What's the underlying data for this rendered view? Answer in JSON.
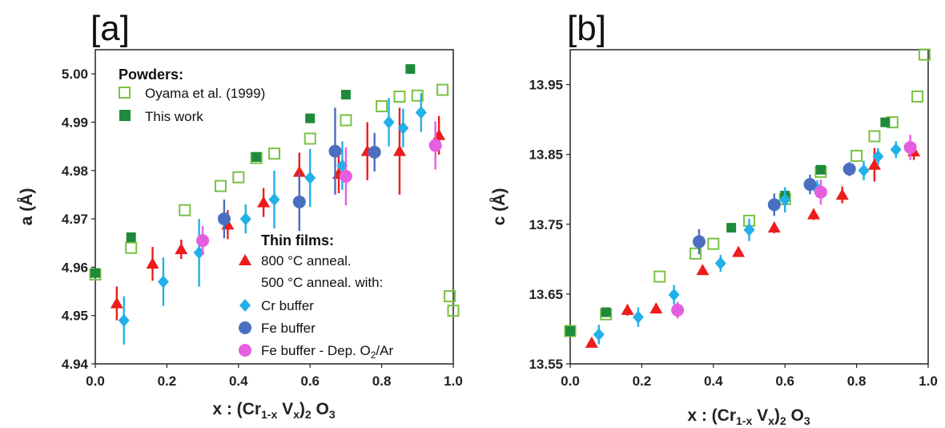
{
  "colors": {
    "oyama": "#7ac143",
    "this_work": "#1e8a3c",
    "anneal800": "#ee1c1c",
    "cr_buffer": "#22b0e8",
    "fe_buffer": "#4a6fc0",
    "fe_dep": "#e65ee0"
  },
  "legend": {
    "powders_heading": "Powders:",
    "oyama": "Oyama et al. (1999)",
    "this_work": "This work",
    "films_heading": "Thin films:",
    "anneal800": "800 °C anneal.",
    "anneal500": "500 °C anneal. with:",
    "cr_buffer": "Cr buffer",
    "fe_buffer": "Fe buffer",
    "fe_dep_main": "Fe buffer - Dep. O",
    "fe_dep_sub": "2",
    "fe_dep_tail": "/Ar"
  },
  "chart_data": [
    {
      "type": "scatter",
      "panel_label": "[a]",
      "ylabel": "a (Å)",
      "xlabel": {
        "main": "x : (Cr",
        "sub1": "1-x",
        "mid": " V",
        "sub2": "x",
        "close": ")",
        "sub3": "2",
        "tail": " O",
        "sub4": "3"
      },
      "xlim": [
        0,
        1.0
      ],
      "ylim": [
        4.94,
        5.005
      ],
      "xticks": [
        "0.0",
        "0.2",
        "0.4",
        "0.6",
        "0.8",
        "1.0"
      ],
      "xtick_values": [
        0,
        0.2,
        0.4,
        0.6,
        0.8,
        1.0
      ],
      "yticks": [
        "4.94",
        "4.95",
        "4.96",
        "4.97",
        "4.98",
        "4.99",
        "5.00"
      ],
      "ytick_values": [
        4.94,
        4.95,
        4.96,
        4.97,
        4.98,
        4.99,
        5.0
      ],
      "series": [
        {
          "name": "Oyama et al. (1999)",
          "marker": "open-square",
          "color_key": "oyama",
          "points": [
            [
              0.0,
              4.9585
            ],
            [
              0.1,
              4.964
            ],
            [
              0.25,
              4.9718
            ],
            [
              0.35,
              4.9768
            ],
            [
              0.4,
              4.9786
            ],
            [
              0.45,
              4.9826
            ],
            [
              0.5,
              4.9835
            ],
            [
              0.6,
              4.9866
            ],
            [
              0.7,
              4.9904
            ],
            [
              0.8,
              4.9933
            ],
            [
              0.85,
              4.9953
            ],
            [
              0.9,
              4.9955
            ],
            [
              0.97,
              4.9967
            ],
            [
              0.99,
              4.954
            ],
            [
              1.0,
              4.951
            ]
          ]
        },
        {
          "name": "This work",
          "marker": "filled-square",
          "color_key": "this_work",
          "points": [
            [
              0.0,
              4.9588
            ],
            [
              0.1,
              4.9662
            ],
            [
              0.45,
              4.9828
            ],
            [
              0.6,
              4.9908
            ],
            [
              0.7,
              4.9957
            ],
            [
              0.88,
              5.001
            ]
          ]
        },
        {
          "name": "800 °C anneal.",
          "marker": "triangle",
          "color_key": "anneal800",
          "points": [
            [
              0.06,
              4.9525,
              0.0035
            ],
            [
              0.16,
              4.9607,
              0.0035
            ],
            [
              0.24,
              4.9637,
              0.002
            ],
            [
              0.37,
              4.9688,
              0.003
            ],
            [
              0.47,
              4.9734,
              0.003
            ],
            [
              0.57,
              4.9797,
              0.004
            ],
            [
              0.68,
              4.9793,
              0.004
            ],
            [
              0.76,
              4.984,
              0.006
            ],
            [
              0.85,
              4.984,
              0.009
            ],
            [
              0.96,
              4.9873,
              0.004
            ]
          ]
        },
        {
          "name": "Cr buffer",
          "marker": "diamond",
          "color_key": "cr_buffer",
          "points": [
            [
              0.08,
              4.949,
              0.005
            ],
            [
              0.19,
              4.957,
              0.005
            ],
            [
              0.29,
              4.963,
              0.007
            ],
            [
              0.42,
              4.97,
              0.003
            ],
            [
              0.5,
              4.974,
              0.006
            ],
            [
              0.6,
              4.9785,
              0.006
            ],
            [
              0.69,
              4.981,
              0.005
            ],
            [
              0.82,
              4.99,
              0.005
            ],
            [
              0.86,
              4.9888,
              0.004
            ],
            [
              0.91,
              4.992,
              0.004
            ]
          ]
        },
        {
          "name": "Fe buffer",
          "marker": "circle",
          "color_key": "fe_buffer",
          "points": [
            [
              0.36,
              4.97,
              0.004
            ],
            [
              0.57,
              4.9735,
              0.006
            ],
            [
              0.67,
              4.984,
              0.009
            ],
            [
              0.78,
              4.9838,
              0.004
            ]
          ]
        },
        {
          "name": "Fe buffer - Dep. O2/Ar",
          "marker": "circle",
          "color_key": "fe_dep",
          "points": [
            [
              0.3,
              4.9655,
              0.003
            ],
            [
              0.7,
              4.9788,
              0.006
            ],
            [
              0.95,
              4.9852,
              0.005
            ]
          ]
        }
      ]
    },
    {
      "type": "scatter",
      "panel_label": "[b]",
      "ylabel": "c (Å)",
      "xlabel": {
        "main": "x : (Cr",
        "sub1": "1-x",
        "mid": " V",
        "sub2": "x",
        "close": ")",
        "sub3": "2",
        "tail": " O",
        "sub4": "3"
      },
      "xlim": [
        0,
        1.0
      ],
      "ylim": [
        13.55,
        14.0
      ],
      "xticks": [
        "0.0",
        "0.2",
        "0.4",
        "0.6",
        "0.8",
        "1.0"
      ],
      "xtick_values": [
        0,
        0.2,
        0.4,
        0.6,
        0.8,
        1.0
      ],
      "yticks": [
        "13.55",
        "13.65",
        "13.75",
        "13.85",
        "13.95"
      ],
      "ytick_values": [
        13.55,
        13.65,
        13.75,
        13.85,
        13.95
      ],
      "series": [
        {
          "name": "Oyama et al. (1999)",
          "marker": "open-square",
          "color_key": "oyama",
          "points": [
            [
              0.0,
              13.597
            ],
            [
              0.1,
              13.621
            ],
            [
              0.25,
              13.675
            ],
            [
              0.35,
              13.708
            ],
            [
              0.4,
              13.722
            ],
            [
              0.5,
              13.755
            ],
            [
              0.6,
              13.786
            ],
            [
              0.7,
              13.825
            ],
            [
              0.8,
              13.848
            ],
            [
              0.85,
              13.876
            ],
            [
              0.9,
              13.896
            ],
            [
              0.97,
              13.933
            ],
            [
              0.99,
              13.993
            ]
          ]
        },
        {
          "name": "This work",
          "marker": "filled-square",
          "color_key": "this_work",
          "points": [
            [
              0.0,
              13.597
            ],
            [
              0.1,
              13.624
            ],
            [
              0.45,
              13.745
            ],
            [
              0.6,
              13.791
            ],
            [
              0.7,
              13.828
            ],
            [
              0.88,
              13.896
            ]
          ]
        },
        {
          "name": "800 °C anneal.",
          "marker": "triangle",
          "color_key": "anneal800",
          "points": [
            [
              0.06,
              13.58,
              0.006
            ],
            [
              0.16,
              13.627,
              0.008
            ],
            [
              0.24,
              13.629,
              0.006
            ],
            [
              0.37,
              13.684,
              0.006
            ],
            [
              0.47,
              13.71,
              0.006
            ],
            [
              0.57,
              13.745,
              0.008
            ],
            [
              0.68,
              13.764,
              0.008
            ],
            [
              0.76,
              13.792,
              0.012
            ],
            [
              0.85,
              13.835,
              0.024
            ],
            [
              0.96,
              13.854,
              0.012
            ]
          ]
        },
        {
          "name": "Cr buffer",
          "marker": "diamond",
          "color_key": "cr_buffer",
          "points": [
            [
              0.08,
              13.592,
              0.014
            ],
            [
              0.19,
              13.617,
              0.014
            ],
            [
              0.29,
              13.649,
              0.014
            ],
            [
              0.42,
              13.694,
              0.012
            ],
            [
              0.5,
              13.742,
              0.016
            ],
            [
              0.6,
              13.785,
              0.018
            ],
            [
              0.69,
              13.801,
              0.012
            ],
            [
              0.82,
              13.827,
              0.014
            ],
            [
              0.86,
              13.847,
              0.012
            ],
            [
              0.91,
              13.857,
              0.012
            ]
          ]
        },
        {
          "name": "Fe buffer",
          "marker": "circle",
          "color_key": "fe_buffer",
          "points": [
            [
              0.36,
              13.725,
              0.018
            ],
            [
              0.57,
              13.778,
              0.016
            ],
            [
              0.67,
              13.807,
              0.014
            ],
            [
              0.78,
              13.829,
              0.01
            ]
          ]
        },
        {
          "name": "Fe buffer - Dep. O2/Ar",
          "marker": "circle",
          "color_key": "fe_dep",
          "points": [
            [
              0.3,
              13.627,
              0.012
            ],
            [
              0.7,
              13.796,
              0.018
            ],
            [
              0.95,
              13.86,
              0.018
            ]
          ]
        }
      ]
    }
  ]
}
